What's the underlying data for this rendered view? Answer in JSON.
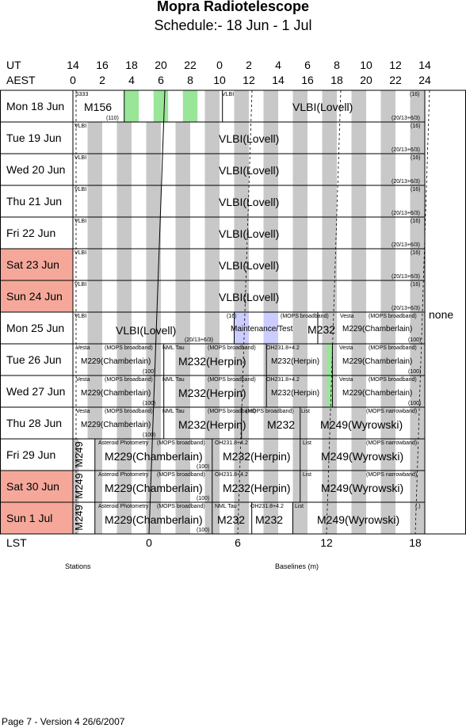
{
  "title": "Mopra Radiotelescope",
  "subtitle": "Schedule:- 18 Jun - 1  Jul",
  "axes": {
    "ut_label": "UT",
    "aest_label": "AEST",
    "ut_ticks": [
      "14",
      "16",
      "18",
      "20",
      "22",
      "0",
      "2",
      "4",
      "6",
      "8",
      "10",
      "12",
      "14"
    ],
    "aest_ticks": [
      "0",
      "2",
      "4",
      "6",
      "8",
      "10",
      "12",
      "14",
      "16",
      "18",
      "20",
      "22",
      "24"
    ],
    "lst_label": "LST",
    "lst_ticks": [
      "0",
      "6",
      "12",
      "18"
    ]
  },
  "colors": {
    "weekend": "#f5a89a",
    "stripe": "#c8c8c8",
    "green": "#99e699",
    "lavender": "#ccccff"
  },
  "days": [
    {
      "label": "Mon   18 Jun",
      "weekend": false
    },
    {
      "label": "Tue   19 Jun",
      "weekend": false
    },
    {
      "label": "Wed  20 Jun",
      "weekend": false
    },
    {
      "label": "Thu   21 Jun",
      "weekend": false
    },
    {
      "label": "Fri    22 Jun",
      "weekend": false
    },
    {
      "label": "Sat   23 Jun",
      "weekend": true
    },
    {
      "label": "Sun   24 Jun",
      "weekend": true
    },
    {
      "label": "Mon   25 Jun",
      "weekend": false
    },
    {
      "label": "Tue   26 Jun",
      "weekend": false
    },
    {
      "label": "Wed  27 Jun",
      "weekend": false
    },
    {
      "label": "Thu   28 Jun",
      "weekend": false
    },
    {
      "label": "Fri    29 Jun",
      "weekend": false
    },
    {
      "label": "Sat   30 Jun",
      "weekend": true
    },
    {
      "label": "Sun     1  Jul",
      "weekend": true
    }
  ],
  "labels": {
    "r0_s333": "S333",
    "r0_m156": "M156",
    "r0_110": "(110)",
    "r0_vlbi_small": "VLBI",
    "r0_vlbi": "VLBI(Lovell)",
    "r0_16": "(16)",
    "r0_code": "(20/13+6/3)",
    "vlbi_small": "VLBI",
    "vlbi_big": "VLBI(Lovell)",
    "n16": "(16)",
    "code": "(20/13+6/3)",
    "r7_vlbi_small": "VLBI",
    "r7_vlbi": "VLBI(Lovell)",
    "r7_16": "(16)",
    "r7_code": "(20/13+6/3)",
    "r7_mops": "(MOPS broadband)",
    "r7_maint": "Maintenance/Test",
    "r7_m232": "M232",
    "r7_vesta": "Vesta",
    "r7_mops2": "(MOPS broadband)",
    "r7_m229": "M229(Chamberlain)",
    "r7_100": "(100)",
    "vesta": "Vesta",
    "mops_bb": "(MOPS broadband)",
    "m229": "M229(Chamberlain)",
    "p100": "(100)",
    "nml": "NML Tau",
    "m232h": "M232(Herpin)",
    "oh": "OH231.8+4.2",
    "m232hs": "M232(Herpin)",
    "r10_vesta": "Vesta",
    "r10_mops": "(MOPS broadband)",
    "r10_m229": "M229(Chamberlain)",
    "r10_100": "(100)",
    "r10_nml": "NML Tau",
    "r10_mops2": "(MOPS broadband)",
    "r10_m232h": "M232(Herpin)",
    "r10_mops3": "(MOPS broadband)",
    "r10_m232": "M232",
    "r10_list": "List",
    "r10_mopsn": "(MOPS narrowband)",
    "r10_m249": "M249(Wyrowski)",
    "m249v": "M249",
    "ast": "Asteroid Photometry",
    "m229b": "M229(Chamberlain)",
    "m232hb": "M232(Herpin)",
    "list": "List",
    "mops_nb": "(MOPS narrowband)",
    "m249": "M249(Wyrowski)",
    "r13_nml": "NML Tau",
    "r13_m232a": "M232",
    "r13_oh": "OH231.8+4.2",
    "r13_m232b": "M232",
    "r13_list": "List",
    "r13_paren": "(.)",
    "r13_m249": "M249(Wyrowski)"
  },
  "none_label": "none",
  "footer": {
    "stations": "Stations",
    "baselines": "Baselines (m)",
    "page": "Page 7 - Version 4  26/6/2007"
  }
}
